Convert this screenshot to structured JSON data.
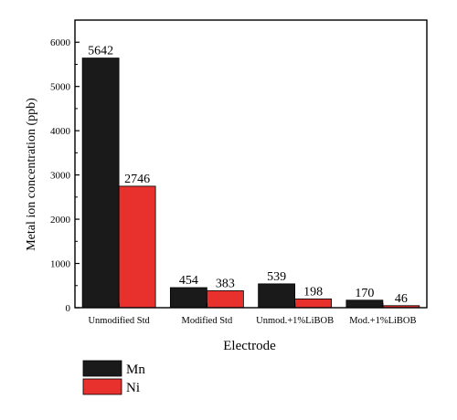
{
  "chart_data": {
    "type": "bar",
    "title": "",
    "xlabel": "Electrode",
    "ylabel": "Metal ion concentration (ppb)",
    "categories": [
      "Unmodified Std",
      "Modified Std",
      "Unmod.+1%LiBOB",
      "Mod.+1%LiBOB"
    ],
    "series": [
      {
        "name": "Mn",
        "color": "#1a1a1a",
        "values": [
          5642,
          454,
          539,
          170
        ]
      },
      {
        "name": "Ni",
        "color": "#e8302d",
        "values": [
          2746,
          383,
          198,
          46
        ]
      }
    ],
    "ylim": [
      0,
      6500
    ],
    "yticks": [
      0,
      1000,
      2000,
      3000,
      4000,
      5000,
      6000
    ],
    "ytick_labels": [
      "0",
      "1000",
      "2000",
      "3000",
      "4000",
      "5000",
      "6000"
    ],
    "data_labels": [
      [
        "5642",
        "454",
        "539",
        "170"
      ],
      [
        "2746",
        "383",
        "198",
        "46"
      ]
    ],
    "grid": false,
    "legend_position": "bottom-left"
  }
}
